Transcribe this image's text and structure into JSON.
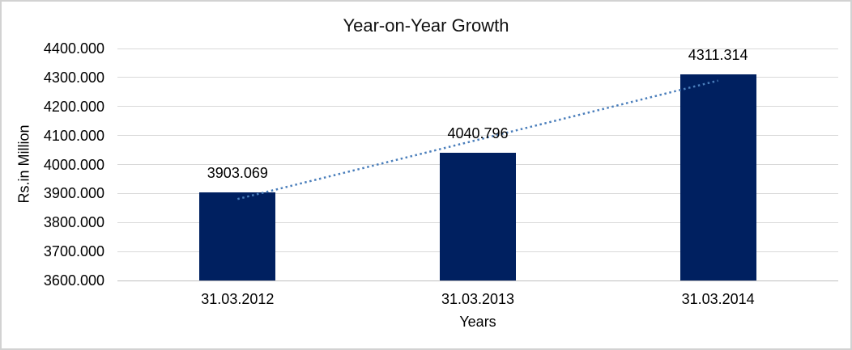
{
  "chart_data": {
    "type": "bar",
    "title": "Year-on-Year Growth",
    "categories": [
      "31.03.2012",
      "31.03.2013",
      "31.03.2014"
    ],
    "values": [
      3903.069,
      4040.796,
      4311.314
    ],
    "data_labels": [
      "3903.069",
      "4040.796",
      "4311.314"
    ],
    "xlabel": "Years",
    "ylabel": "Rs.in Million",
    "ylim": [
      3600,
      4400
    ],
    "ytick_step": 100,
    "ytick_labels": [
      "3600.000",
      "3700.000",
      "3800.000",
      "3900.000",
      "4000.000",
      "4100.000",
      "4200.000",
      "4300.000",
      "4400.000"
    ],
    "grid": true,
    "legend": false,
    "bar_color": "#002060",
    "trendline": {
      "type": "linear",
      "style": "dotted",
      "color": "#4A7EBB"
    },
    "gridline_color": "#D9D9D9",
    "axis_line_color": "#BFBFBF",
    "text_color": "#000000"
  }
}
